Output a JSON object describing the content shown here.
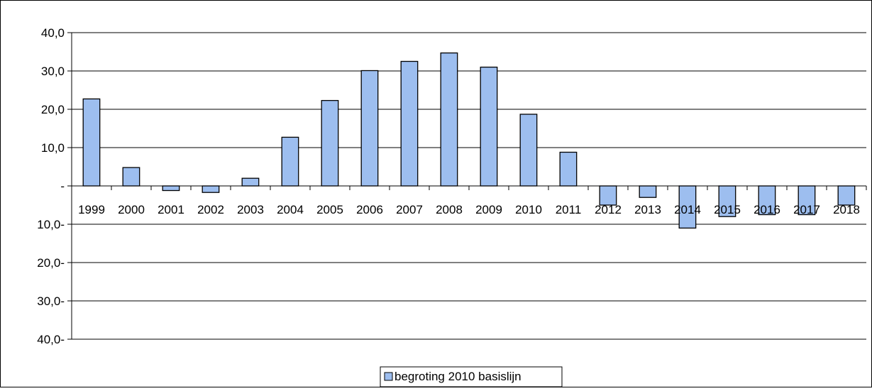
{
  "chart_data": {
    "type": "bar",
    "categories": [
      "1999",
      "2000",
      "2001",
      "2002",
      "2003",
      "2004",
      "2005",
      "2006",
      "2007",
      "2008",
      "2009",
      "2010",
      "2011",
      "2012",
      "2013",
      "2014",
      "2015",
      "2016",
      "2017",
      "2018"
    ],
    "series": [
      {
        "name": "begroting 2010 basislijn",
        "values": [
          22.7,
          4.8,
          -1.2,
          -1.7,
          2.0,
          12.7,
          22.3,
          30.1,
          32.5,
          34.7,
          31.0,
          18.7,
          8.8,
          -5.0,
          -3.0,
          -11.0,
          -8.0,
          -7.5,
          -7.5,
          -5.0
        ]
      }
    ],
    "ylim": [
      -40,
      40
    ],
    "yticks": [
      40,
      30,
      20,
      10,
      0,
      -10,
      -20,
      -30,
      -40
    ],
    "ytick_labels": [
      "40,0",
      "30,0",
      "20,0",
      "10,0",
      "-",
      "10,0-",
      "20,0-",
      "30,0-",
      "40,0-"
    ],
    "grid": true,
    "legend_position": "bottom",
    "colors": {
      "bar_fill": "#9DBEEF",
      "bar_stroke": "#000000",
      "grid": "#000000"
    }
  }
}
